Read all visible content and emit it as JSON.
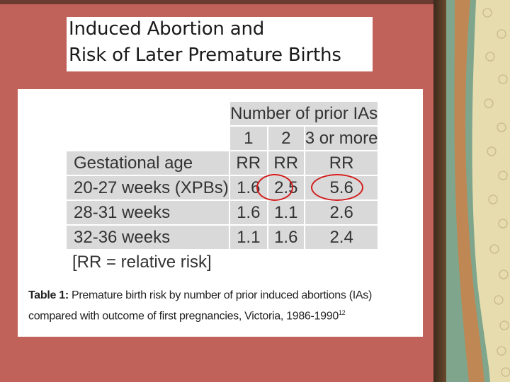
{
  "slide": {
    "title_line1": "Induced Abortion and",
    "title_line2": "Risk of Later Premature Births"
  },
  "table": {
    "header_group": "Number of prior IAs",
    "sub_headers": [
      "1",
      "2",
      "3 or more"
    ],
    "row_header": "Gestational age",
    "units": [
      "RR",
      "RR",
      "RR"
    ],
    "rows": [
      {
        "label": "20-27 weeks (XPBs)",
        "values": [
          "1.6",
          "2.5",
          "5.6"
        ]
      },
      {
        "label": "28-31 weeks",
        "values": [
          "1.6",
          "1.1",
          "2.6"
        ]
      },
      {
        "label": "32-36 weeks",
        "values": [
          "1.1",
          "1.6",
          "2.4"
        ]
      }
    ],
    "note": "[RR = relative risk]",
    "caption_prefix": "Table 1:",
    "caption_text": " Premature birth risk by number of prior induced abortions (IAs) compared with outcome of first pregnancies, Victoria, 1986-1990",
    "caption_ref": "12"
  },
  "colors": {
    "background": "#c0625a",
    "highlight_circle": "#d11c1c",
    "table_cell": "#d9d9d9"
  }
}
